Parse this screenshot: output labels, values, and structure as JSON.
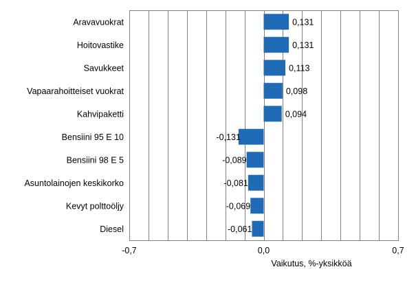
{
  "chart_data": {
    "type": "bar",
    "orientation": "horizontal",
    "categories": [
      "Aravavuokrat",
      "Hoitovastike",
      "Savukkeet",
      "Vapaarahoitteiset vuokrat",
      "Kahvipaketti",
      "Bensiini 95 E 10",
      "Bensiini 98 E 5",
      "Asuntolainojen keskikorko",
      "Kevyt polttoöljy",
      "Diesel"
    ],
    "values": [
      0.131,
      0.131,
      0.113,
      0.098,
      0.094,
      -0.131,
      -0.089,
      -0.081,
      -0.069,
      -0.061
    ],
    "value_labels": [
      "0,131",
      "0,131",
      "0,113",
      "0,098",
      "0,094",
      "-0,131",
      "-0,089",
      "-0,081",
      "-0,069",
      "-0,061"
    ],
    "xlim": [
      -0.7,
      0.7
    ],
    "xticks": [
      {
        "value": -0.7,
        "label": "-0,7"
      },
      {
        "value": 0.0,
        "label": "0,0"
      },
      {
        "value": 0.7,
        "label": "0,7"
      }
    ],
    "gridlines": [
      -0.7,
      -0.6,
      -0.5,
      -0.4,
      -0.3,
      -0.2,
      -0.1,
      0.0,
      0.1,
      0.2,
      0.3,
      0.4,
      0.5,
      0.6,
      0.7
    ],
    "grid": true,
    "title": "",
    "xlabel": "Vaikutus, %-yksikköä",
    "ylabel": "",
    "colors": {
      "bar": "#1f6bb5",
      "grid": "#808080",
      "frame": "#808080"
    }
  }
}
